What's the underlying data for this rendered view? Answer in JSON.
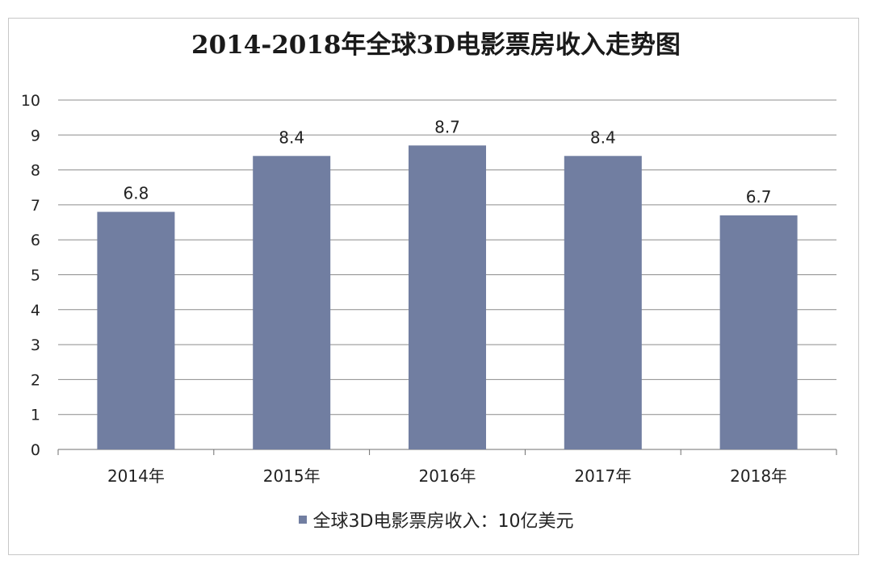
{
  "chart_data": {
    "type": "bar",
    "title": "2014-2018年全球3D电影票房收入走势图",
    "categories": [
      "2014年",
      "2015年",
      "2016年",
      "2017年",
      "2018年"
    ],
    "series": [
      {
        "name": "全球3D电影票房收入：10亿美元",
        "values": [
          6.8,
          8.4,
          8.7,
          8.4,
          6.7
        ],
        "data_labels": [
          "6.8",
          "8.4",
          "8.7",
          "8.4",
          "6.7"
        ]
      }
    ],
    "yticks": [
      "0",
      "1",
      "2",
      "3",
      "4",
      "5",
      "6",
      "7",
      "8",
      "9",
      "10"
    ],
    "ylim": [
      0,
      10
    ],
    "grid": true,
    "legend": "bottom",
    "bar_color": "#717ea1",
    "grid_color": "#8c8c8c"
  }
}
